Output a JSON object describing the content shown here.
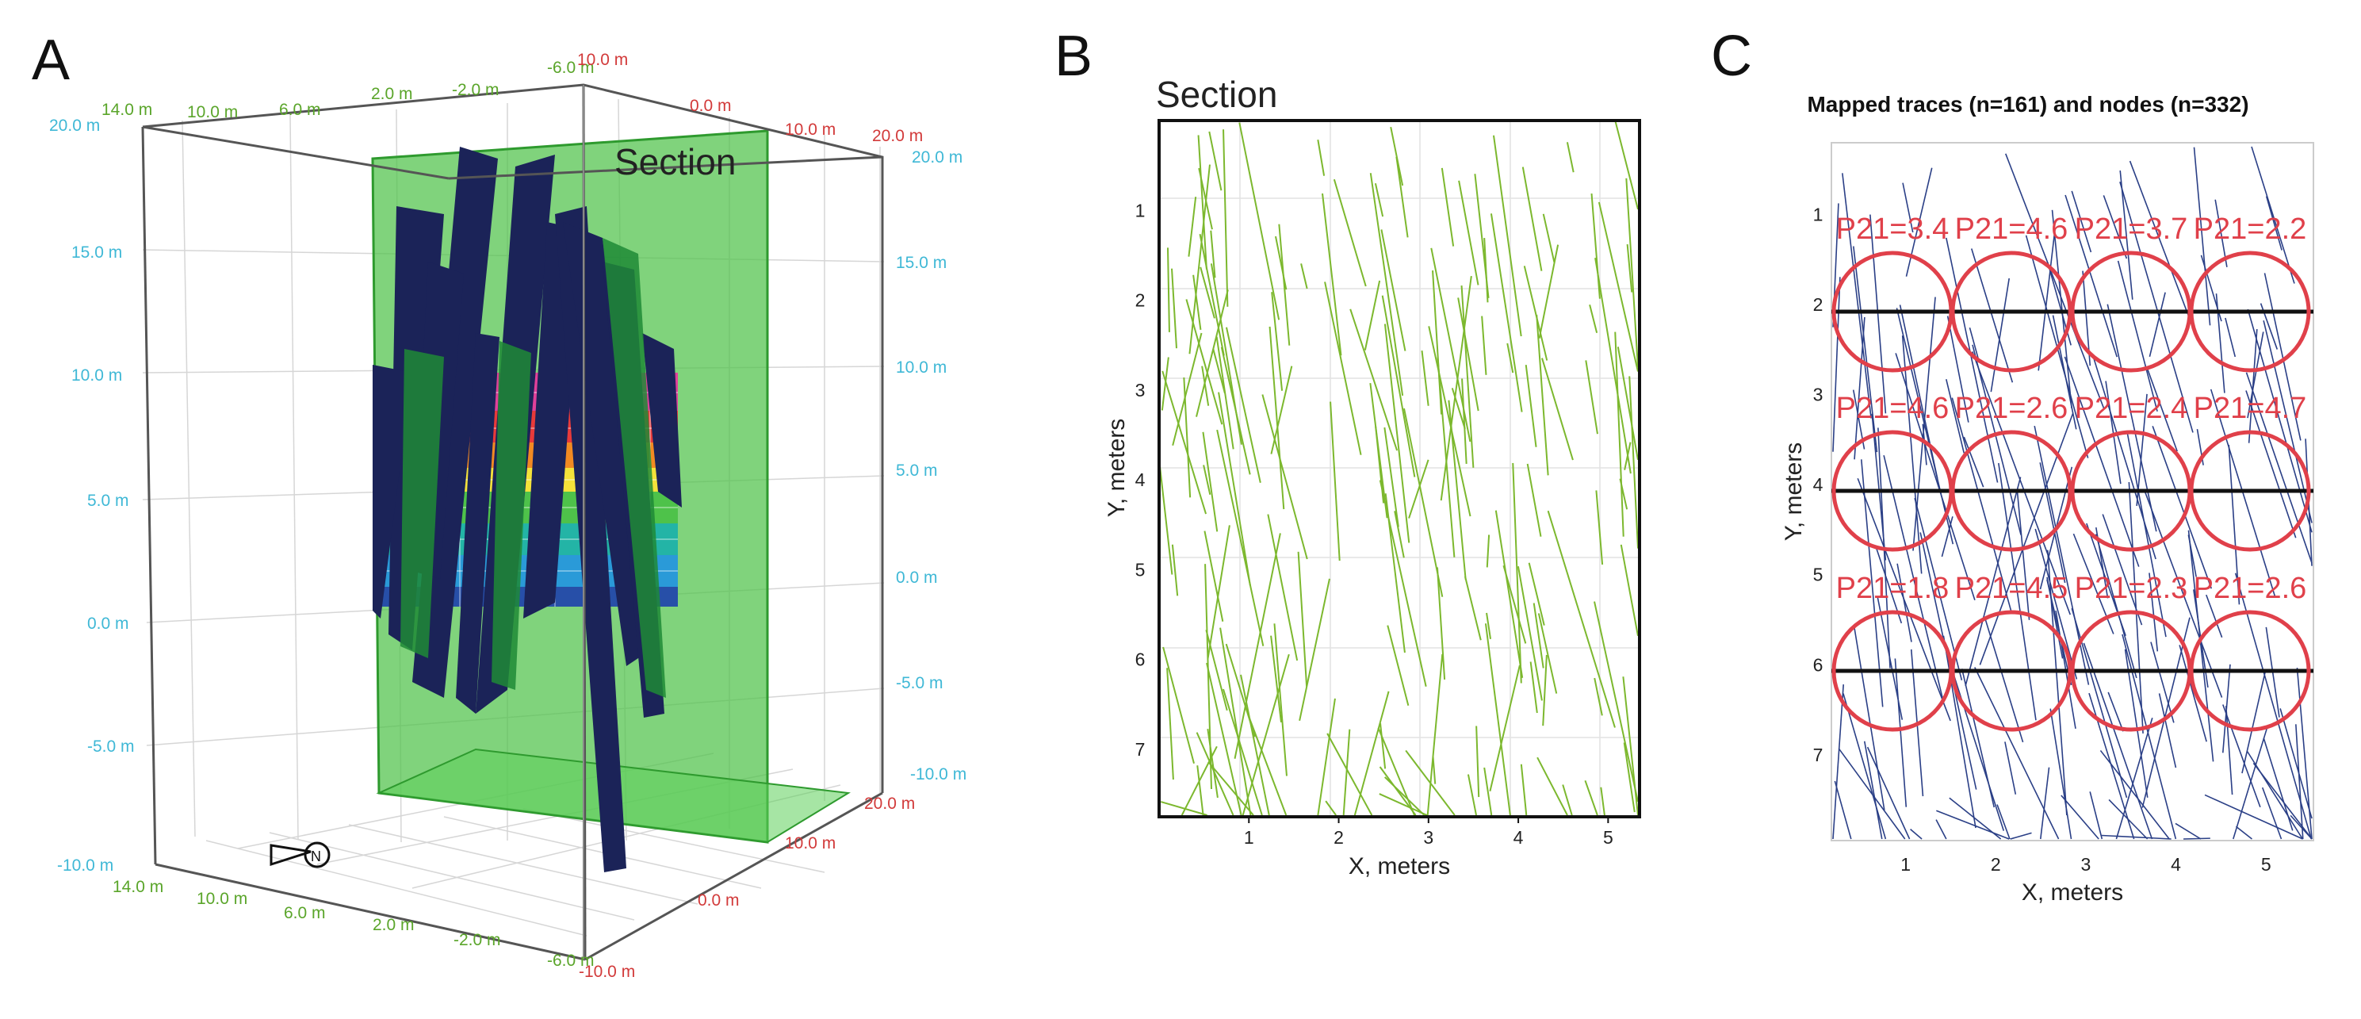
{
  "panels": {
    "a": {
      "letter": "A",
      "section_label": "Section",
      "top_left_ticks": [
        "14.0 m",
        "10.0 m",
        "6.0 m",
        "2.0 m",
        "-2.0 m",
        "-6.0 m"
      ],
      "top_right_ticks": [
        "10.0 m",
        "0.0 m",
        "10.0 m",
        "20.0 m"
      ],
      "left_z_ticks": [
        "20.0 m",
        "15.0 m",
        "10.0 m",
        "5.0 m",
        "0.0 m",
        "-5.0 m",
        "-10.0 m"
      ],
      "right_z_ticks": [
        "20.0 m",
        "15.0 m",
        "10.0 m",
        "5.0 m",
        "0.0 m",
        "-5.0 m",
        "-10.0 m"
      ],
      "bottom_left_ticks": [
        "14.0 m",
        "10.0 m",
        "6.0 m",
        "2.0 m",
        "-2.0 m",
        "-6.0 m"
      ],
      "bottom_right_ticks": [
        "-10.0 m",
        "0.0 m",
        "10.0 m",
        "20.0 m"
      ],
      "compass_letter": "N",
      "colors": {
        "section_plane": "#4fc24a",
        "fractures": "#1b2358",
        "box": "#555555"
      }
    },
    "b": {
      "letter": "B",
      "section_label": "Section",
      "x_label": "X, meters",
      "y_label": "Y, meters",
      "x_ticks": [
        "1",
        "2",
        "3",
        "4",
        "5"
      ],
      "y_ticks": [
        "1",
        "2",
        "3",
        "4",
        "5",
        "6",
        "7"
      ],
      "trace_color": "#7cb82e"
    },
    "c": {
      "letter": "C",
      "title": "Mapped traces (n=161) and nodes (n=332)",
      "x_label": "X, meters",
      "y_label": "Y, meters",
      "x_ticks": [
        "1",
        "2",
        "3",
        "4",
        "5"
      ],
      "y_ticks": [
        "1",
        "2",
        "3",
        "4",
        "5",
        "6",
        "7"
      ],
      "trace_color": "#2a3f86",
      "circle_color": "#e0404a",
      "p21_rows": [
        [
          "P21=3.4",
          "P21=4.6",
          "P21=3.7",
          "P21=2.2"
        ],
        [
          "P21=4.6",
          "P21=2.6",
          "P21=2.4",
          "P21=4.7"
        ],
        [
          "P21=1.8",
          "P21=4.5",
          "P21=2.3",
          "P21=2.6"
        ]
      ]
    }
  }
}
